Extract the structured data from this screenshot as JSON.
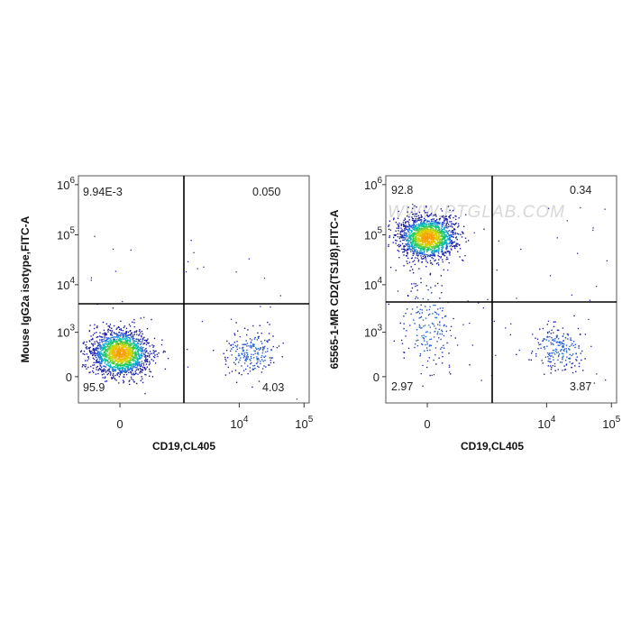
{
  "watermark": "WWW.PTGLAB.COM",
  "colors": {
    "gate": "#000000",
    "density_low": "#1a1aa0",
    "density_mid": "#00c0c0",
    "density_high": "#ffa000"
  },
  "chart_data": [
    {
      "type": "scatter",
      "subtype": "flow-cytometry-dot-plot",
      "title": "",
      "xlabel": "CD19,CL405",
      "ylabel": "Mouse IgG2a isotype,FITC-A",
      "x_scale": "biexponential",
      "y_scale": "biexponential",
      "x_ticks": [
        {
          "base": "0",
          "exp": ""
        },
        {
          "base": "10",
          "exp": "4"
        },
        {
          "base": "10",
          "exp": "5"
        }
      ],
      "y_ticks": [
        {
          "base": "0",
          "exp": ""
        },
        {
          "base": "10",
          "exp": "3"
        },
        {
          "base": "10",
          "exp": "4"
        },
        {
          "base": "10",
          "exp": "5"
        },
        {
          "base": "10",
          "exp": "6"
        }
      ],
      "quadrant_values": {
        "UL": "9.94E-3",
        "UR": "0.050",
        "LL": "95.9",
        "LR": "4.03"
      },
      "clusters": [
        {
          "quadrant": "LL",
          "x_center": 0,
          "y_center": 300,
          "relative_density": "high",
          "share_percent": 95.9
        },
        {
          "quadrant": "LR",
          "x_center": 15000,
          "y_center": 300,
          "relative_density": "low",
          "share_percent": 4.03
        }
      ]
    },
    {
      "type": "scatter",
      "subtype": "flow-cytometry-dot-plot",
      "title": "",
      "xlabel": "CD19,CL405",
      "ylabel": "65565-1-MR CD2(TS1/8),FITC-A",
      "x_scale": "biexponential",
      "y_scale": "biexponential",
      "x_ticks": [
        {
          "base": "0",
          "exp": ""
        },
        {
          "base": "10",
          "exp": "4"
        },
        {
          "base": "10",
          "exp": "5"
        }
      ],
      "y_ticks": [
        {
          "base": "0",
          "exp": ""
        },
        {
          "base": "10",
          "exp": "3"
        },
        {
          "base": "10",
          "exp": "4"
        },
        {
          "base": "10",
          "exp": "5"
        },
        {
          "base": "10",
          "exp": "6"
        }
      ],
      "quadrant_values": {
        "UL": "92.8",
        "UR": "0.34",
        "LL": "2.97",
        "LR": "3.87"
      },
      "clusters": [
        {
          "quadrant": "UL",
          "x_center": 0,
          "y_center": 90000,
          "relative_density": "high",
          "share_percent": 92.8
        },
        {
          "quadrant": "LL",
          "x_center": 0,
          "y_center": 1500,
          "relative_density": "low",
          "share_percent": 2.97
        },
        {
          "quadrant": "LR",
          "x_center": 15000,
          "y_center": 400,
          "relative_density": "low",
          "share_percent": 3.87
        }
      ]
    }
  ]
}
